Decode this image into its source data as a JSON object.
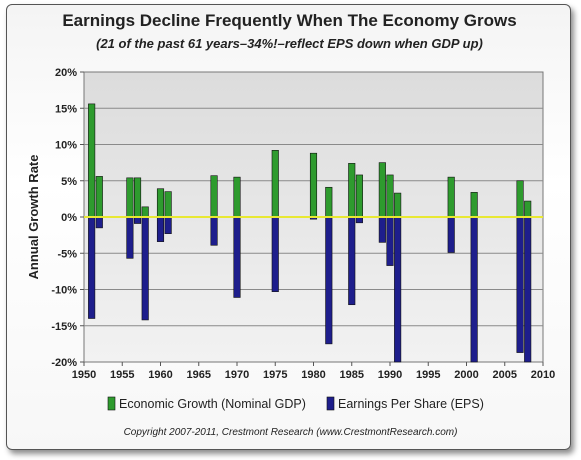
{
  "chart_data": {
    "type": "bar",
    "title": "Earnings Decline Frequently When The Economy Grows",
    "subtitle": "(21 of the past 61 years–34%!–reflect EPS down when GDP up)",
    "ylabel": "Annual Growth Rate",
    "xlabel": "",
    "ylim": [
      -20,
      20
    ],
    "xlim": [
      1950,
      2010
    ],
    "x_ticks": [
      "1950",
      "1955",
      "1960",
      "1965",
      "1970",
      "1975",
      "1980",
      "1985",
      "1990",
      "1995",
      "2000",
      "2005",
      "2010"
    ],
    "y_ticks": [
      "20%",
      "15%",
      "10%",
      "5%",
      "0%",
      "-5%",
      "-10%",
      "-15%",
      "-20%"
    ],
    "grid": "horizontal",
    "legend_position": "bottom",
    "series": [
      {
        "name": "Economic Growth (Nominal GDP)",
        "color": "#2e9b2e",
        "x": [
          1951,
          1952,
          1956,
          1957,
          1958,
          1960,
          1961,
          1967,
          1970,
          1975,
          1980,
          1982,
          1985,
          1986,
          1989,
          1990,
          1991,
          1998,
          2001,
          2007,
          2008
        ],
        "values": [
          15.6,
          5.6,
          5.4,
          5.4,
          1.4,
          3.9,
          3.5,
          5.7,
          5.5,
          9.2,
          8.8,
          4.1,
          7.4,
          5.8,
          7.5,
          5.8,
          3.3,
          5.5,
          3.4,
          5.0,
          2.2
        ]
      },
      {
        "name": "Earnings Per Share (EPS)",
        "color": "#1e1e8c",
        "x": [
          1951,
          1952,
          1956,
          1957,
          1958,
          1960,
          1961,
          1967,
          1970,
          1975,
          1980,
          1982,
          1985,
          1986,
          1989,
          1990,
          1991,
          1998,
          2001,
          2007,
          2008
        ],
        "values": [
          -14.0,
          -1.5,
          -5.7,
          -0.9,
          -14.2,
          -3.4,
          -2.3,
          -3.9,
          -11.1,
          -10.3,
          -0.3,
          -17.5,
          -12.1,
          -0.8,
          -3.5,
          -6.7,
          -20.0,
          -4.9,
          -20.0,
          -18.7,
          -20.0
        ]
      }
    ]
  },
  "copyright": "Copyright 2007-2011, Crestmont Research (www.CrestmontResearch.com)"
}
